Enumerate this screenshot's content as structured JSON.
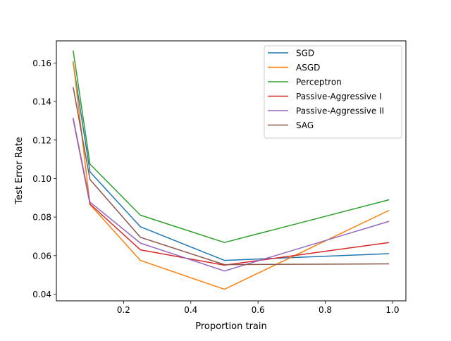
{
  "chart_data": {
    "type": "line",
    "title": "",
    "xlabel": "Proportion train",
    "ylabel": "Test Error Rate",
    "xlim": [
      0.0,
      1.04
    ],
    "ylim": [
      0.0365,
      0.1715
    ],
    "xticks": [
      0.2,
      0.4,
      0.6,
      0.8,
      1.0
    ],
    "xtick_labels": [
      "0.2",
      "0.4",
      "0.6",
      "0.8",
      "1.0"
    ],
    "yticks": [
      0.04,
      0.06,
      0.08,
      0.1,
      0.12,
      0.14,
      0.16
    ],
    "ytick_labels": [
      "0.04",
      "0.06",
      "0.08",
      "0.10",
      "0.12",
      "0.14",
      "0.16"
    ],
    "grid": false,
    "legend_position": "top-right",
    "x": [
      0.05,
      0.1,
      0.25,
      0.5,
      0.99
    ],
    "series": [
      {
        "name": "SGD",
        "color": "#1f77b4",
        "values": [
          0.16,
          0.1035,
          0.075,
          0.0575,
          0.061
        ]
      },
      {
        "name": "ASGD",
        "color": "#ff7f0e",
        "values": [
          0.161,
          0.0865,
          0.0575,
          0.0425,
          0.0835
        ]
      },
      {
        "name": "Perceptron",
        "color": "#2ca02c",
        "values": [
          0.1665,
          0.1075,
          0.081,
          0.0668,
          0.089
        ]
      },
      {
        "name": "Passive-Aggressive I",
        "color": "#d62728",
        "values": [
          0.131,
          0.0868,
          0.063,
          0.055,
          0.0668
        ]
      },
      {
        "name": "Passive-Aggressive II",
        "color": "#9467bd",
        "values": [
          0.1315,
          0.0878,
          0.0665,
          0.052,
          0.0778
        ]
      },
      {
        "name": "SAG",
        "color": "#8c564b",
        "values": [
          0.1475,
          0.0995,
          0.0695,
          0.0553,
          0.0557
        ]
      }
    ]
  }
}
